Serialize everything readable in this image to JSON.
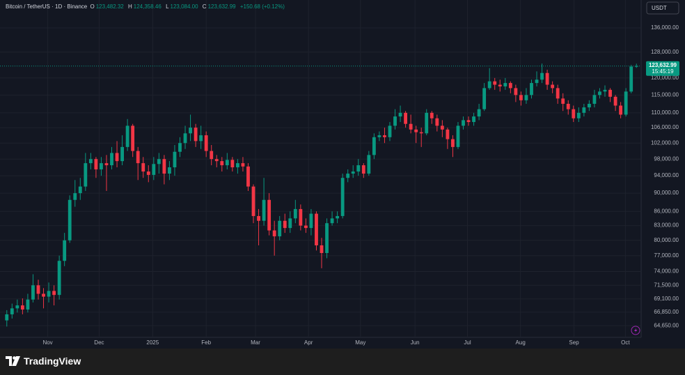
{
  "header": {
    "symbol": "Bitcoin / TetherUS · 1D · Binance",
    "open": {
      "label": "O",
      "value": "123,482.32"
    },
    "high": {
      "label": "H",
      "value": "124,358.46"
    },
    "low": {
      "label": "L",
      "value": "123,084.00"
    },
    "close": {
      "label": "C",
      "value": "123,632.99"
    },
    "change": "+150.68 (+0.12%)"
  },
  "currency": "USDT",
  "price_tag": {
    "value": 123632.99,
    "label": "123,632.99",
    "countdown": "15:45:19"
  },
  "logo": "TradingView",
  "chart_data": {
    "type": "candlestick",
    "log": true,
    "grid": true,
    "up_color": "#089981",
    "down_color": "#f23645",
    "open": [
      65500,
      66500,
      67500,
      68000,
      67300,
      69000,
      71500,
      70000,
      69500,
      70500,
      69800,
      76000,
      80000,
      88500,
      90000,
      91500,
      97000,
      98000,
      95500,
      97000,
      96500,
      99500,
      97500,
      101000,
      106500,
      100000,
      97000,
      95000,
      94200,
      96800,
      98000,
      94500,
      96000,
      99800,
      102000,
      104500,
      106000,
      102500,
      104000,
      100000,
      98000,
      97500,
      96500,
      97800,
      96000,
      97000,
      96200,
      91500,
      85000,
      84000,
      88500,
      82000,
      80800,
      84000,
      82500,
      84500,
      86500,
      83000,
      82500,
      85500,
      79000,
      77500,
      83500,
      84500,
      85000,
      93500,
      94500,
      95000,
      96500,
      94500,
      99000,
      103500,
      104000,
      103500,
      106500,
      109000,
      110000,
      107000,
      105500,
      104800,
      104500,
      110000,
      108500,
      106500,
      105500,
      103000,
      101000,
      106500,
      108000,
      107500,
      109000,
      111000,
      117000,
      119000,
      118000,
      117500,
      118500,
      117000,
      115000,
      113500,
      115000,
      118500,
      119500,
      121500,
      118000,
      117000,
      114000,
      112500,
      111000,
      108500,
      110000,
      111500,
      112500,
      115000,
      116000,
      116500,
      114500,
      112000,
      109500,
      116000,
      123482.32
    ],
    "high": [
      67200,
      68300,
      69000,
      69200,
      70000,
      73500,
      72500,
      71000,
      72000,
      71500,
      77000,
      81500,
      89500,
      93000,
      93500,
      99500,
      99500,
      98500,
      98500,
      99000,
      101000,
      102500,
      104000,
      108300,
      107000,
      101000,
      98500,
      96500,
      98500,
      99500,
      99000,
      97500,
      101500,
      103500,
      106500,
      109500,
      107000,
      106500,
      105000,
      101500,
      99000,
      98500,
      99500,
      98500,
      98000,
      98500,
      97000,
      92000,
      86500,
      93500,
      90000,
      84000,
      85000,
      85500,
      86000,
      88500,
      87500,
      84500,
      86500,
      86000,
      80500,
      84500,
      86000,
      86000,
      94500,
      95500,
      96500,
      98000,
      97000,
      100000,
      104500,
      105000,
      106000,
      107500,
      111000,
      112000,
      110500,
      109500,
      106500,
      106000,
      111000,
      110500,
      109500,
      108000,
      106000,
      104000,
      107500,
      109000,
      109000,
      110000,
      112500,
      118500,
      123000,
      120000,
      119500,
      120000,
      119000,
      118000,
      116000,
      117000,
      119500,
      122000,
      124400,
      122500,
      119000,
      118000,
      115500,
      113500,
      112000,
      111500,
      112500,
      113500,
      116500,
      117000,
      117800,
      117000,
      115000,
      113000,
      117000,
      124000,
      124358.46
    ],
    "low": [
      64500,
      65800,
      66800,
      66500,
      66800,
      68500,
      69000,
      67500,
      68500,
      68000,
      69000,
      75000,
      79500,
      87000,
      88500,
      90500,
      95500,
      93500,
      94000,
      90500,
      95500,
      96000,
      96500,
      100000,
      98500,
      93000,
      93500,
      92500,
      93000,
      94500,
      92000,
      93000,
      94000,
      98500,
      100500,
      102500,
      101000,
      100500,
      98500,
      96500,
      96000,
      95000,
      95500,
      95000,
      94500,
      95000,
      90500,
      83500,
      79000,
      83000,
      81000,
      77000,
      80000,
      81500,
      81500,
      83500,
      82000,
      81500,
      81000,
      78000,
      74600,
      76500,
      83000,
      83500,
      84500,
      92500,
      93500,
      94000,
      93500,
      94000,
      98000,
      102500,
      102000,
      102500,
      105500,
      107500,
      106000,
      104500,
      102000,
      101000,
      104000,
      107000,
      105000,
      103500,
      100500,
      98500,
      100500,
      105500,
      106500,
      106500,
      108000,
      110500,
      116500,
      116500,
      116000,
      116500,
      115500,
      113000,
      112000,
      112500,
      114000,
      117500,
      118500,
      116500,
      115500,
      112500,
      110500,
      109500,
      107500,
      107500,
      109000,
      110500,
      111500,
      114000,
      114500,
      113000,
      110500,
      108500,
      109000,
      115500,
      123084
    ],
    "close": [
      66500,
      67500,
      68000,
      67300,
      69000,
      71500,
      70000,
      69500,
      70500,
      69800,
      76000,
      80000,
      88500,
      90000,
      91500,
      97000,
      98000,
      95500,
      97000,
      96500,
      99500,
      97500,
      101000,
      106500,
      100000,
      97000,
      95000,
      94200,
      96800,
      98000,
      94500,
      96000,
      99800,
      102000,
      104500,
      106000,
      102500,
      104000,
      100000,
      98000,
      97500,
      96500,
      97800,
      96000,
      97000,
      96200,
      91500,
      85000,
      84000,
      88500,
      82000,
      80800,
      84000,
      82500,
      84500,
      86500,
      83000,
      82500,
      85500,
      79000,
      77500,
      83500,
      84500,
      85000,
      93500,
      94500,
      95000,
      96500,
      94500,
      99000,
      103500,
      104000,
      103500,
      106500,
      109000,
      110000,
      107000,
      105500,
      104800,
      104500,
      110000,
      108500,
      106500,
      105500,
      103000,
      101000,
      106500,
      108000,
      107500,
      109000,
      111000,
      117000,
      119000,
      118000,
      117500,
      118500,
      117000,
      115000,
      113500,
      115000,
      118500,
      119500,
      121500,
      118000,
      117000,
      114000,
      112500,
      111000,
      108500,
      110000,
      111500,
      112500,
      115000,
      116000,
      116500,
      114500,
      112000,
      109500,
      116000,
      123482.32,
      123632.99
    ],
    "ylim": [
      63000,
      145800
    ],
    "yticks": [
      {
        "value": 64650,
        "label": "64,650.00"
      },
      {
        "value": 66850,
        "label": "66,850.00"
      },
      {
        "value": 69100,
        "label": "69,100.00"
      },
      {
        "value": 71500,
        "label": "71,500.00"
      },
      {
        "value": 74000,
        "label": "74,000.00"
      },
      {
        "value": 77000,
        "label": "77,000.00"
      },
      {
        "value": 80000,
        "label": "80,000.00"
      },
      {
        "value": 83000,
        "label": "83,000.00"
      },
      {
        "value": 86000,
        "label": "86,000.00"
      },
      {
        "value": 90000,
        "label": "90,000.00"
      },
      {
        "value": 94000,
        "label": "94,000.00"
      },
      {
        "value": 98000,
        "label": "98,000.00"
      },
      {
        "value": 102000,
        "label": "102,000.00"
      },
      {
        "value": 106000,
        "label": "106,000.00"
      },
      {
        "value": 110000,
        "label": "110,000.00"
      },
      {
        "value": 115000,
        "label": "115,000.00"
      },
      {
        "value": 120000,
        "label": "120,000.00"
      },
      {
        "value": 128000,
        "label": "128,000.00"
      },
      {
        "value": 136000,
        "label": "136,000.00"
      }
    ],
    "xlim": [
      0,
      121
    ],
    "xticks": [
      {
        "value": 8.3,
        "label": "Nov"
      },
      {
        "value": 18.1,
        "label": "Dec"
      },
      {
        "value": 28.3,
        "label": "2025"
      },
      {
        "value": 38.5,
        "label": "Feb"
      },
      {
        "value": 47.9,
        "label": "Mar"
      },
      {
        "value": 58.0,
        "label": "Apr"
      },
      {
        "value": 67.9,
        "label": "May"
      },
      {
        "value": 78.3,
        "label": "Jun"
      },
      {
        "value": 88.3,
        "label": "Jul"
      },
      {
        "value": 98.4,
        "label": "Aug"
      },
      {
        "value": 108.6,
        "label": "Sep"
      },
      {
        "value": 118.4,
        "label": "Oct"
      }
    ]
  }
}
